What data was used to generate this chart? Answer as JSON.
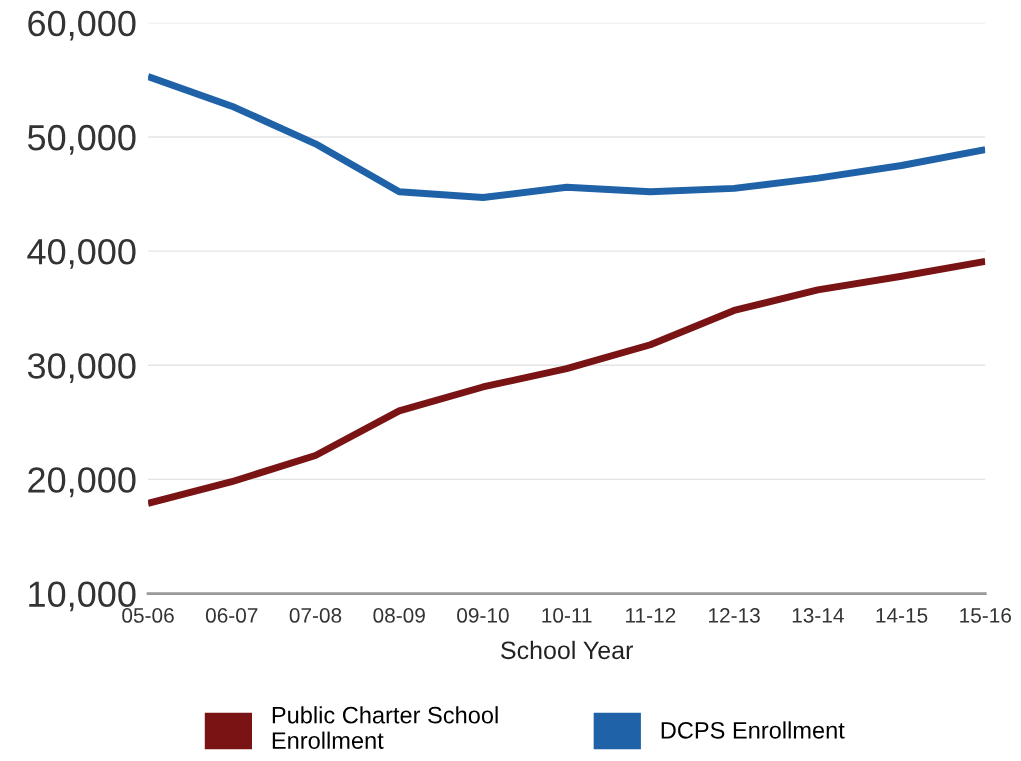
{
  "chart_data": {
    "type": "line",
    "xlabel": "School Year",
    "categories": [
      "05-06",
      "06-07",
      "07-08",
      "08-09",
      "09-10",
      "10-11",
      "11-12",
      "12-13",
      "13-14",
      "14-15",
      "15-16"
    ],
    "series": [
      {
        "name": "Public Charter School Enrollment",
        "color": "#7a1414",
        "values": [
          17900,
          19800,
          22100,
          26000,
          28100,
          29700,
          31800,
          34800,
          36600,
          37800,
          39100
        ]
      },
      {
        "name": "DCPS Enrollment",
        "color": "#1f62a8",
        "values": [
          55300,
          52700,
          49400,
          45200,
          44700,
          45600,
          45200,
          45500,
          46400,
          47500,
          48900
        ]
      }
    ],
    "ylim": [
      10000,
      60000
    ],
    "yticks": [
      {
        "value": 10000,
        "label": "10,000"
      },
      {
        "value": 20000,
        "label": "20,000"
      },
      {
        "value": 30000,
        "label": "30,000"
      },
      {
        "value": 40000,
        "label": "40,000"
      },
      {
        "value": 50000,
        "label": "50,000"
      },
      {
        "value": 60000,
        "label": "60,000"
      }
    ],
    "grid": "y",
    "legend": "bottom",
    "marker": "none",
    "line_style": "solid"
  }
}
